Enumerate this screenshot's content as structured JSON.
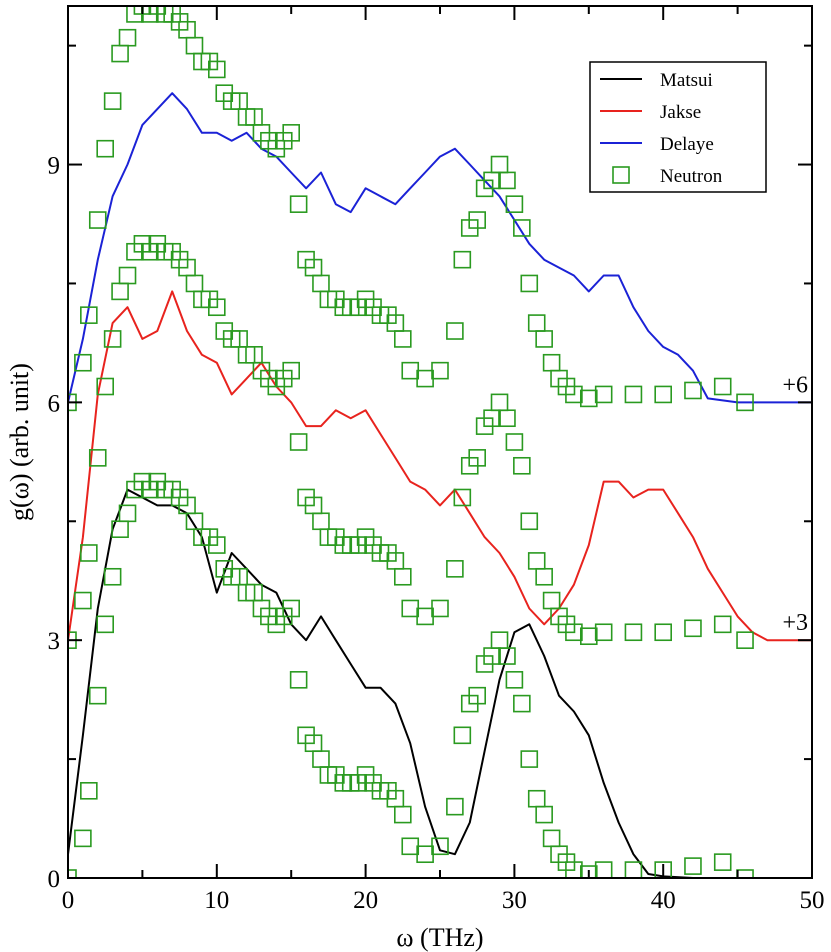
{
  "chart_data": {
    "type": "line",
    "title": "",
    "xlabel": "ω (THz)",
    "ylabel": "g(ω) (arb. unit)",
    "xlim": [
      0,
      50
    ],
    "ylim": [
      0,
      11
    ],
    "x_ticks": [
      "0",
      "10",
      "20",
      "30",
      "40",
      "50"
    ],
    "y_ticks": [
      "0",
      "3",
      "6",
      "9"
    ],
    "legend_position": "top-right",
    "grid": false,
    "series": [
      {
        "name": "Matsui",
        "color": "#000000",
        "style": "line",
        "x": [
          0,
          1,
          2,
          3,
          4,
          5,
          6,
          7,
          8,
          9,
          10,
          11,
          12,
          13,
          14,
          15,
          16,
          17,
          18,
          19,
          20,
          21,
          22,
          23,
          24,
          25,
          26,
          27,
          28,
          29,
          30,
          31,
          32,
          33,
          34,
          35,
          36,
          37,
          38,
          39,
          40,
          42,
          45,
          50
        ],
        "y": [
          0.3,
          1.8,
          3.4,
          4.4,
          4.9,
          4.8,
          4.7,
          4.7,
          4.6,
          4.3,
          3.6,
          4.1,
          3.9,
          3.7,
          3.6,
          3.2,
          3.0,
          3.3,
          3.0,
          2.7,
          2.4,
          2.4,
          2.2,
          1.7,
          0.9,
          0.35,
          0.3,
          0.7,
          1.6,
          2.5,
          3.1,
          3.2,
          2.8,
          2.3,
          2.1,
          1.8,
          1.2,
          0.7,
          0.3,
          0.05,
          0.02,
          0.0,
          0.0,
          0.0
        ]
      },
      {
        "name": "Jakse",
        "color": "#e8231e",
        "style": "line",
        "offset_label": "+3",
        "x": [
          0,
          1,
          2,
          3,
          4,
          5,
          6,
          7,
          8,
          9,
          10,
          11,
          12,
          13,
          14,
          15,
          16,
          17,
          18,
          19,
          20,
          21,
          22,
          23,
          24,
          25,
          26,
          27,
          28,
          29,
          30,
          31,
          32,
          33,
          34,
          35,
          36,
          37,
          38,
          39,
          40,
          41,
          42,
          43,
          44,
          45,
          46,
          47,
          48,
          49,
          50
        ],
        "y": [
          3.0,
          4.3,
          6.1,
          7.0,
          7.2,
          6.8,
          6.9,
          7.4,
          6.9,
          6.6,
          6.5,
          6.1,
          6.3,
          6.5,
          6.2,
          6.0,
          5.7,
          5.7,
          5.9,
          5.8,
          5.9,
          5.6,
          5.3,
          5.0,
          4.9,
          4.7,
          4.9,
          4.6,
          4.3,
          4.1,
          3.8,
          3.4,
          3.2,
          3.4,
          3.7,
          4.2,
          5.0,
          5.0,
          4.8,
          4.9,
          4.9,
          4.6,
          4.3,
          3.9,
          3.6,
          3.3,
          3.1,
          3.0,
          3.0,
          3.0,
          3.0
        ]
      },
      {
        "name": "Delaye",
        "color": "#1b22d6",
        "style": "line",
        "offset_label": "+6",
        "x": [
          0,
          1,
          2,
          3,
          4,
          5,
          6,
          7,
          8,
          9,
          10,
          11,
          12,
          13,
          14,
          15,
          16,
          17,
          18,
          19,
          20,
          21,
          22,
          23,
          24,
          25,
          26,
          27,
          28,
          29,
          30,
          31,
          32,
          33,
          34,
          35,
          36,
          37,
          38,
          39,
          40,
          41,
          42,
          43,
          45,
          50
        ],
        "y": [
          6.0,
          6.8,
          7.8,
          8.6,
          9.0,
          9.5,
          9.7,
          9.9,
          9.7,
          9.4,
          9.4,
          9.3,
          9.4,
          9.2,
          9.1,
          8.9,
          8.7,
          8.9,
          8.5,
          8.4,
          8.7,
          8.6,
          8.5,
          8.7,
          8.9,
          9.1,
          9.2,
          9.0,
          8.8,
          8.6,
          8.3,
          8.0,
          7.8,
          7.7,
          7.6,
          7.4,
          7.6,
          7.6,
          7.2,
          6.9,
          6.7,
          6.6,
          6.4,
          6.05,
          6.0,
          6.0
        ]
      },
      {
        "name": "Neutron",
        "color": "#2a9a20",
        "style": "open-square",
        "copies_at_offsets": [
          "0",
          "+3",
          "+6"
        ],
        "x": [
          0.0,
          1.0,
          1.4,
          2.0,
          2.5,
          3.0,
          3.5,
          4.0,
          4.5,
          5.0,
          5.5,
          6.0,
          6.5,
          7.0,
          7.5,
          8.0,
          8.5,
          9.0,
          9.5,
          10.0,
          10.5,
          11.0,
          11.5,
          12.0,
          12.5,
          13.0,
          13.5,
          14.0,
          14.5,
          15.0,
          15.5,
          16.0,
          16.5,
          17.0,
          17.5,
          18.0,
          18.5,
          19.0,
          19.5,
          20.0,
          20.5,
          21.0,
          21.5,
          22.0,
          22.5,
          23.0,
          24.0,
          25.0,
          26.0,
          26.5,
          27.0,
          27.5,
          28.0,
          28.5,
          29.0,
          29.5,
          30.0,
          30.5,
          31.0,
          31.5,
          32.0,
          32.5,
          33.0,
          33.5,
          34.0,
          35.0,
          36.0,
          38.0,
          40.0,
          42.0,
          44.0,
          45.5
        ],
        "y": [
          0.0,
          0.5,
          1.1,
          2.3,
          3.2,
          3.8,
          4.4,
          4.6,
          4.9,
          5.0,
          4.9,
          5.0,
          4.9,
          4.9,
          4.8,
          4.7,
          4.5,
          4.3,
          4.3,
          4.2,
          3.9,
          3.8,
          3.8,
          3.6,
          3.6,
          3.4,
          3.3,
          3.2,
          3.3,
          3.4,
          2.5,
          1.8,
          1.7,
          1.5,
          1.3,
          1.3,
          1.2,
          1.2,
          1.2,
          1.3,
          1.2,
          1.1,
          1.1,
          1.0,
          0.8,
          0.4,
          0.3,
          0.4,
          0.9,
          1.8,
          2.2,
          2.3,
          2.7,
          2.8,
          3.0,
          2.8,
          2.5,
          2.2,
          1.5,
          1.0,
          0.8,
          0.5,
          0.3,
          0.2,
          0.1,
          0.05,
          0.1,
          0.1,
          0.1,
          0.15,
          0.2,
          0.0
        ]
      }
    ]
  }
}
